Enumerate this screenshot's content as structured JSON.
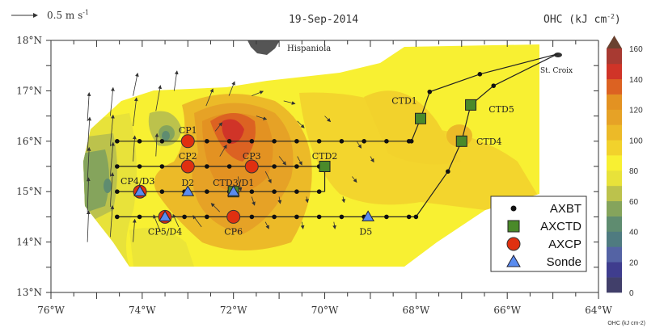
{
  "title": "19-Sep-2014",
  "scale_label": "0.5 m s",
  "scale_exp": "-1",
  "colorbar_label": "OHC (kJ cm",
  "colorbar_exp": "-2",
  "colorbar_close": ")",
  "places": {
    "hispaniola": "Hispaniola",
    "st_croix": "St. Croix"
  },
  "chart_data": {
    "type": "map",
    "title": "19-Sep-2014",
    "lon_range": [
      -76,
      -64
    ],
    "lat_range": [
      13,
      18
    ],
    "x_ticks": [
      "76°W",
      "74°W",
      "72°W",
      "70°W",
      "68°W",
      "66°W",
      "64°W"
    ],
    "y_ticks": [
      "18°N",
      "17°N",
      "16°N",
      "15°N",
      "14°N",
      "13°N"
    ],
    "colorbar": {
      "label": "OHC (kJ cm-2)",
      "ticks": [
        "0",
        "20",
        "40",
        "60",
        "80",
        "100",
        "120",
        "140",
        "160"
      ],
      "levels": [
        0,
        10,
        20,
        30,
        40,
        50,
        60,
        70,
        80,
        90,
        100,
        110,
        120,
        130,
        140,
        150,
        160
      ],
      "colors": [
        "#413f6a",
        "#3f3d8e",
        "#5463a4",
        "#4f7b80",
        "#5f8c70",
        "#85a45c",
        "#bcc24c",
        "#e8e23a",
        "#f8f032",
        "#f2d22c",
        "#ecba28",
        "#e6a226",
        "#e39222",
        "#dc6222",
        "#d03428",
        "#a83a32"
      ],
      "extend_color": "#6a4230"
    },
    "legend": [
      {
        "label": "AXBT",
        "marker": "dot",
        "color": "#111111"
      },
      {
        "label": "AXCTD",
        "marker": "square",
        "color": "#4a8a2a"
      },
      {
        "label": "AXCP",
        "marker": "circle",
        "color": "#e03010"
      },
      {
        "label": "Sonde",
        "marker": "triangle",
        "color": "#5a8cf0"
      }
    ],
    "instrument_labels": [
      {
        "text": "CP1",
        "lon": -73.0,
        "lat": 16.0
      },
      {
        "text": "CP2",
        "lon": -73.0,
        "lat": 15.5
      },
      {
        "text": "CP3",
        "lon": -71.6,
        "lat": 15.5
      },
      {
        "text": "CP4/D3",
        "lon": -74.1,
        "lat": 15.0
      },
      {
        "text": "CP5/D4",
        "lon": -73.5,
        "lat": 14.5
      },
      {
        "text": "CP6",
        "lon": -72.0,
        "lat": 14.5
      },
      {
        "text": "D2",
        "lon": -73.0,
        "lat": 15.0
      },
      {
        "text": "D5",
        "lon": -69.1,
        "lat": 14.5
      },
      {
        "text": "CTD1",
        "lon": -67.9,
        "lat": 16.45
      },
      {
        "text": "CTD2",
        "lon": -70.0,
        "lat": 15.5
      },
      {
        "text": "CTD3/D1",
        "lon": -72.0,
        "lat": 15.0
      },
      {
        "text": "CTD4",
        "lon": -67.0,
        "lat": 16.0
      },
      {
        "text": "CTD5",
        "lon": -66.8,
        "lat": 16.7
      }
    ],
    "vector_scale_ms": 0.5,
    "vectors": [
      [
        -75.2,
        14.0,
        0.02,
        0.55
      ],
      [
        -75.2,
        14.6,
        0.02,
        0.6
      ],
      [
        -75.2,
        15.2,
        0.03,
        0.6
      ],
      [
        -75.2,
        15.8,
        0.04,
        0.6
      ],
      [
        -75.2,
        16.4,
        0.03,
        0.5
      ],
      [
        -74.7,
        14.1,
        0.04,
        0.55
      ],
      [
        -74.7,
        14.7,
        0.04,
        0.6
      ],
      [
        -74.7,
        15.3,
        0.05,
        0.6
      ],
      [
        -74.7,
        15.9,
        0.05,
        0.55
      ],
      [
        -74.7,
        16.5,
        0.05,
        0.5
      ],
      [
        -74.2,
        14.0,
        0.03,
        0.4
      ],
      [
        -74.2,
        15.6,
        0.03,
        0.45
      ],
      [
        -74.2,
        16.3,
        0.06,
        0.5
      ],
      [
        -74.2,
        16.9,
        0.08,
        0.4
      ],
      [
        -73.7,
        15.7,
        0.02,
        0.4
      ],
      [
        -73.7,
        16.6,
        0.08,
        0.45
      ],
      [
        -73.3,
        17.0,
        0.05,
        0.35
      ],
      [
        -73.6,
        14.2,
        -0.12,
        0.3
      ],
      [
        -73.2,
        14.3,
        -0.1,
        0.22
      ],
      [
        -72.7,
        14.3,
        -0.15,
        0.2
      ],
      [
        -72.3,
        14.6,
        -0.15,
        0.15
      ],
      [
        -72.6,
        16.7,
        0.12,
        0.3
      ],
      [
        -72.1,
        16.9,
        0.1,
        0.25
      ],
      [
        -71.6,
        16.9,
        0.2,
        0.08
      ],
      [
        -70.9,
        16.8,
        0.2,
        -0.05
      ],
      [
        -72.4,
        16.2,
        0.12,
        0.15
      ],
      [
        -72.3,
        15.7,
        0.12,
        0.2
      ],
      [
        -71.3,
        15.4,
        0.1,
        -0.2
      ],
      [
        -71.0,
        15.7,
        0.12,
        -0.15
      ],
      [
        -71.5,
        16.5,
        0.18,
        -0.06
      ],
      [
        -70.6,
        16.4,
        0.12,
        -0.12
      ],
      [
        -70.0,
        16.5,
        0.1,
        -0.1
      ],
      [
        -70.6,
        15.7,
        0.08,
        -0.15
      ],
      [
        -71.6,
        14.9,
        0.05,
        -0.15
      ],
      [
        -71.0,
        14.9,
        0.02,
        -0.12
      ],
      [
        -70.4,
        14.9,
        0.02,
        -0.1
      ],
      [
        -69.6,
        14.9,
        0.02,
        -0.1
      ],
      [
        -71.3,
        14.4,
        0.06,
        -0.12
      ],
      [
        -70.5,
        14.4,
        0.02,
        -0.12
      ],
      [
        -69.8,
        14.4,
        0.02,
        -0.12
      ],
      [
        -69.4,
        15.3,
        0.08,
        -0.1
      ],
      [
        -69.3,
        16.0,
        0.08,
        -0.12
      ],
      [
        -69.0,
        15.7,
        0.06,
        -0.1
      ],
      [
        -71.9,
        15.3,
        0.05,
        -0.25
      ]
    ]
  }
}
